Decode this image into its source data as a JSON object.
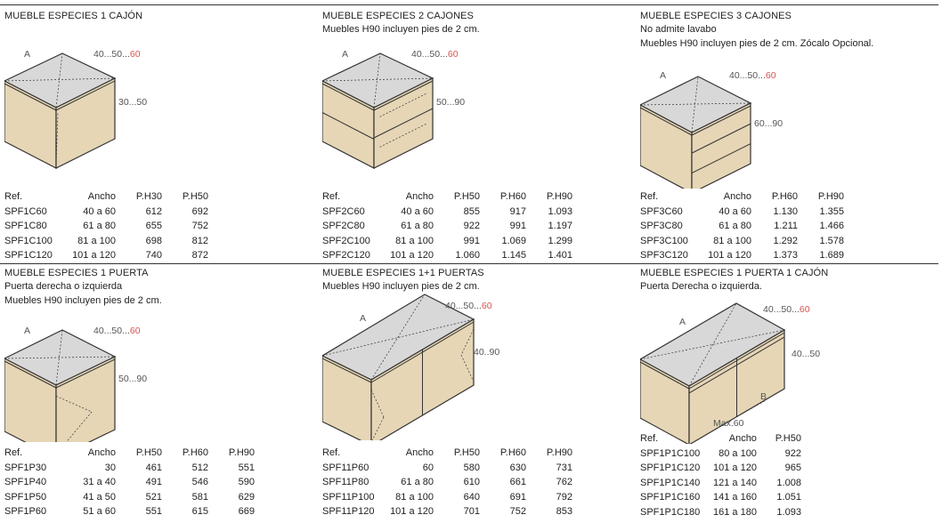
{
  "colors": {
    "wood": "#e6d6b6",
    "top": "#d8d8d8",
    "line": "#333333",
    "accent": "#d9534f"
  },
  "dims": {
    "range_prefix": "40...50...",
    "range_accent": "60",
    "corner": "A",
    "corner_b": "B",
    "max": "Max.60"
  },
  "panels": [
    {
      "title": "MUEBLE ESPECIES 1 CAJÓN",
      "notes": [],
      "height_dim": "30...50",
      "headers": [
        "Ref.",
        "Ancho",
        "P.H30",
        "P.H50"
      ],
      "rows": [
        [
          "SPF1C60",
          "40 a 60",
          "612",
          "692"
        ],
        [
          "SPF1C80",
          "61 a 80",
          "655",
          "752"
        ],
        [
          "SPF1C100",
          "81 a 100",
          "698",
          "812"
        ],
        [
          "SPF1C120",
          "101 a 120",
          "740",
          "872"
        ]
      ]
    },
    {
      "title": "MUEBLE ESPECIES 2 CAJONES",
      "notes": [
        "Muebles H90 incluyen pies de 2 cm."
      ],
      "height_dim": "50...90",
      "headers": [
        "Ref.",
        "Ancho",
        "P.H50",
        "P.H60",
        "P.H90"
      ],
      "rows": [
        [
          "SPF2C60",
          "40 a 60",
          "855",
          "917",
          "1.093"
        ],
        [
          "SPF2C80",
          "61 a 80",
          "922",
          "991",
          "1.197"
        ],
        [
          "SPF2C100",
          "81 a 100",
          "991",
          "1.069",
          "1.299"
        ],
        [
          "SPF2C120",
          "101 a 120",
          "1.060",
          "1.145",
          "1.401"
        ]
      ]
    },
    {
      "title": "MUEBLE ESPECIES 3 CAJONES",
      "notes": [
        "No admite lavabo",
        "Muebles H90 incluyen pies de 2 cm.  Zócalo Opcional."
      ],
      "height_dim": "60...90",
      "headers": [
        "Ref.",
        "Ancho",
        "P.H60",
        "P.H90"
      ],
      "rows": [
        [
          "SPF3C60",
          "40 a 60",
          "1.130",
          "1.355"
        ],
        [
          "SPF3C80",
          "61 a 80",
          "1.211",
          "1.466"
        ],
        [
          "SPF3C100",
          "81 a 100",
          "1.292",
          "1.578"
        ],
        [
          "SPF3C120",
          "101 a 120",
          "1.373",
          "1.689"
        ]
      ]
    },
    {
      "title": "MUEBLE ESPECIES 1 PUERTA",
      "notes": [
        "Puerta derecha o izquierda",
        "Muebles H90 incluyen pies de 2 cm."
      ],
      "height_dim": "50...90",
      "headers": [
        "Ref.",
        "Ancho",
        "P.H50",
        "P.H60",
        "P.H90"
      ],
      "rows": [
        [
          "SPF1P30",
          "30",
          "461",
          "512",
          "551"
        ],
        [
          "SPF1P40",
          "31 a 40",
          "491",
          "546",
          "590"
        ],
        [
          "SPF1P50",
          "41 a 50",
          "521",
          "581",
          "629"
        ],
        [
          "SPF1P60",
          "51 a 60",
          "551",
          "615",
          "669"
        ]
      ]
    },
    {
      "title": "MUEBLE ESPECIES 1+1 PUERTAS",
      "notes": [
        "Muebles H90 incluyen pies de 2 cm."
      ],
      "height_dim": "40..90",
      "headers": [
        "Ref.",
        "Ancho",
        "P.H50",
        "P.H60",
        "P.H90"
      ],
      "rows": [
        [
          "SPF11P60",
          "60",
          "580",
          "630",
          "731"
        ],
        [
          "SPF11P80",
          "61 a 80",
          "610",
          "661",
          "762"
        ],
        [
          "SPF11P100",
          "81 a 100",
          "640",
          "691",
          "792"
        ],
        [
          "SPF11P120",
          "101 a 120",
          "701",
          "752",
          "853"
        ]
      ]
    },
    {
      "title": "MUEBLE ESPECIES 1 PUERTA 1 CAJÓN",
      "notes": [
        "Puerta Derecha o izquierda."
      ],
      "height_dim": "40...50",
      "headers": [
        "Ref.",
        "Ancho",
        "P.H50"
      ],
      "rows": [
        [
          "SPF1P1C100",
          "80 a 100",
          "922"
        ],
        [
          "SPF1P1C120",
          "101 a 120",
          "965"
        ],
        [
          "SPF1P1C140",
          "121 a 140",
          "1.008"
        ],
        [
          "SPF1P1C160",
          "141 a 160",
          "1.051"
        ],
        [
          "SPF1P1C180",
          "161 a 180",
          "1.093"
        ]
      ]
    }
  ]
}
